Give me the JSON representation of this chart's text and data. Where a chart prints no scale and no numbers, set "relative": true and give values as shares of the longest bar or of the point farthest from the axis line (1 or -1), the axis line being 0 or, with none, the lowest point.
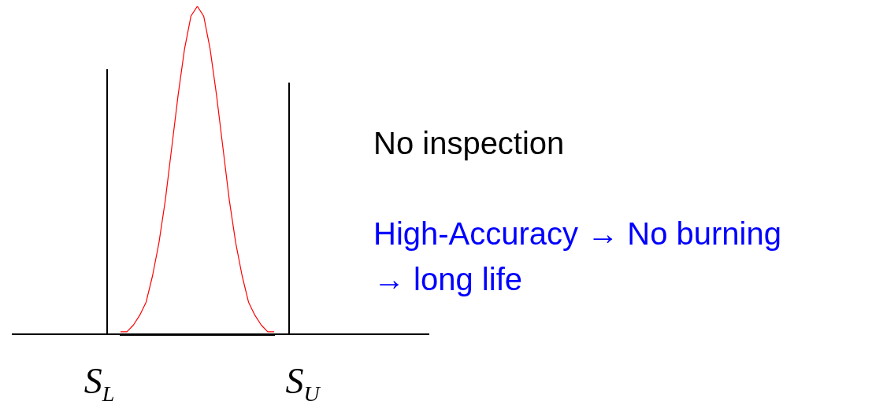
{
  "chart_data": {
    "type": "line",
    "relative": true,
    "marker": "none",
    "categories": [
      null,
      null,
      null,
      null,
      null,
      null,
      null,
      null,
      null,
      null,
      null,
      null,
      null,
      null,
      null,
      null,
      null,
      null,
      null,
      null,
      null,
      null,
      null,
      null,
      null
    ],
    "series": [
      {
        "color": "#ff0000",
        "values": [
          0.01,
          0.01,
          0.03,
          0.06,
          0.1,
          0.18,
          0.28,
          0.41,
          0.57,
          0.73,
          0.87,
          0.97,
          1,
          0.97,
          0.87,
          0.73,
          0.57,
          0.41,
          0.28,
          0.18,
          0.1,
          0.06,
          0.03,
          0.01,
          0.01
        ]
      }
    ],
    "annotations": [
      "S$_{L}$",
      "S$_{U}$",
      "No inspection",
      "High-Accuracy → No burning → long life"
    ]
  }
}
